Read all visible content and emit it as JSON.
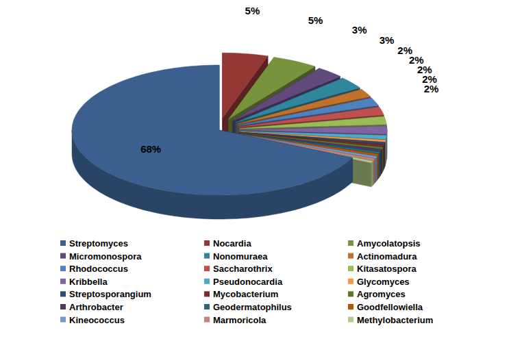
{
  "chart_data": {
    "type": "pie",
    "categories": [
      "Streptomyces",
      "Nocardia",
      "Amycolatopsis",
      "Micromonospora",
      "Nonomuraea",
      "Actinomadura",
      "Rhodococcus",
      "Saccharothrix",
      "Kitasatospora",
      "Kribbella",
      "Pseudonocardia",
      "Glycomyces",
      "Streptosporangium",
      "Mycobacterium",
      "Agromyces",
      "Arthrobacter",
      "Geodermatophilus",
      "Goodfellowiella",
      "Kineococcus",
      "Marmoricola",
      "Methylobacterium"
    ],
    "values": [
      68,
      5,
      5,
      3,
      3,
      2,
      2,
      2,
      2,
      2,
      1,
      0.5,
      0.5,
      0.5,
      0.5,
      0.5,
      0.5,
      0.5,
      0.5,
      0.5,
      0.5
    ],
    "value_labels": [
      "68%",
      "5%",
      "5%",
      "3%",
      "3%",
      "2%",
      "2%",
      "2%",
      "2%",
      "2%",
      null,
      null,
      null,
      null,
      null,
      null,
      null,
      null,
      null,
      null,
      null
    ],
    "colors": [
      "#3b5f8e",
      "#953735",
      "#77933c",
      "#604a7b",
      "#31859c",
      "#c0722c",
      "#4f81bd",
      "#c0504d",
      "#9bbb59",
      "#8064a2",
      "#4bacc6",
      "#f79646",
      "#2c4d75",
      "#772c2a",
      "#5f7530",
      "#4d3b62",
      "#276a7c",
      "#b65708",
      "#729aca",
      "#c9817f",
      "#b3c98b"
    ],
    "data_labels": true,
    "legend": "bottom"
  }
}
